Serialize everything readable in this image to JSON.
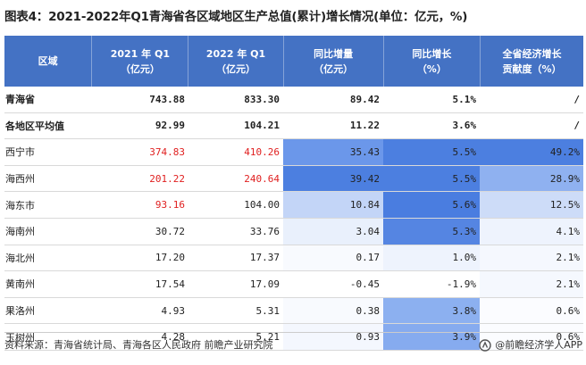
{
  "title": "图表4：2021-2022年Q1青海省各区域地区生产总值(累计)增长情况(单位：亿元，%)",
  "colors": {
    "header_bg": "#4472c4",
    "header_text": "#ffffff",
    "highlight_red": "#e02020",
    "heat_dark": "#4c7fe0",
    "heat_mid": "#7fa6ee",
    "heat_light": "#c7d8f8",
    "heat_faint": "#e8effc"
  },
  "table": {
    "headers": [
      {
        "line1": "区域",
        "line2": ""
      },
      {
        "line1": "2021 年 Q1",
        "line2": "（亿元）"
      },
      {
        "line1": "2022 年 Q1",
        "line2": "（亿元）"
      },
      {
        "line1": "同比增量",
        "line2": "（亿元）"
      },
      {
        "line1": "同比增长",
        "line2": "（%）"
      },
      {
        "line1": "全省经济增长",
        "line2": "贡献度（%）"
      }
    ],
    "rows": [
      {
        "name": "青海省",
        "bold": true,
        "v2021": "743.88",
        "v2022": "833.30",
        "incr": "89.42",
        "growth": "5.1%",
        "contrib": "/",
        "red2021": false,
        "red2022": false,
        "shade": {
          "incr": "",
          "growth": "",
          "contrib": ""
        }
      },
      {
        "name": "各地区平均值",
        "bold": true,
        "v2021": "92.99",
        "v2022": "104.21",
        "incr": "11.22",
        "growth": "3.6%",
        "contrib": "/",
        "red2021": false,
        "red2022": false,
        "shade": {
          "incr": "",
          "growth": "",
          "contrib": ""
        }
      },
      {
        "name": "西宁市",
        "bold": false,
        "v2021": "374.83",
        "v2022": "410.26",
        "incr": "35.43",
        "growth": "5.5%",
        "contrib": "49.2%",
        "red2021": true,
        "red2022": true,
        "shade": {
          "incr": "#6b97ea",
          "growth": "#4c7fe0",
          "contrib": "#4c7fe0"
        }
      },
      {
        "name": "海西州",
        "bold": false,
        "v2021": "201.22",
        "v2022": "240.64",
        "incr": "39.42",
        "growth": "5.5%",
        "contrib": "28.9%",
        "red2021": true,
        "red2022": true,
        "shade": {
          "incr": "#4c7fe0",
          "growth": "#4c7fe0",
          "contrib": "#8fb1f0"
        }
      },
      {
        "name": "海东市",
        "bold": false,
        "v2021": "93.16",
        "v2022": "104.00",
        "incr": "10.84",
        "growth": "5.6%",
        "contrib": "12.5%",
        "red2021": true,
        "red2022": false,
        "shade": {
          "incr": "#c3d5f7",
          "growth": "#4a7de0",
          "contrib": "#cddcf8"
        }
      },
      {
        "name": "海南州",
        "bold": false,
        "v2021": "30.72",
        "v2022": "33.76",
        "incr": "3.04",
        "growth": "5.3%",
        "contrib": "4.1%",
        "red2021": false,
        "red2022": false,
        "shade": {
          "incr": "#e9f0fc",
          "growth": "#5585e2",
          "contrib": "#eef3fd"
        }
      },
      {
        "name": "海北州",
        "bold": false,
        "v2021": "17.20",
        "v2022": "17.37",
        "incr": "0.17",
        "growth": "1.0%",
        "contrib": "2.1%",
        "red2021": false,
        "red2022": false,
        "shade": {
          "incr": "#f8fafe",
          "growth": "#eef3fd",
          "contrib": "#f5f8fe"
        }
      },
      {
        "name": "黄南州",
        "bold": false,
        "v2021": "17.54",
        "v2022": "17.09",
        "incr": "-0.45",
        "growth": "-1.9%",
        "contrib": "2.1%",
        "red2021": false,
        "red2022": false,
        "shade": {
          "incr": "",
          "growth": "",
          "contrib": "#f5f8fe"
        }
      },
      {
        "name": "果洛州",
        "bold": false,
        "v2021": "4.93",
        "v2022": "5.31",
        "incr": "0.38",
        "growth": "3.8%",
        "contrib": "0.6%",
        "red2021": false,
        "red2022": false,
        "shade": {
          "incr": "#f8fafe",
          "growth": "#8cb0f0",
          "contrib": "#fbfcff"
        }
      },
      {
        "name": "玉树州",
        "bold": false,
        "v2021": "4.28",
        "v2022": "5.21",
        "incr": "0.93",
        "growth": "3.9%",
        "contrib": "0.6%",
        "red2021": false,
        "red2022": false,
        "shade": {
          "incr": "#f4f7fe",
          "growth": "#86abef",
          "contrib": "#fbfcff"
        }
      }
    ]
  },
  "footer": {
    "source": "资料来源：青海省统计局、青海各区人民政府 前瞻产业研究院",
    "brand": "@前瞻经济学人APP",
    "brand_icon": "qianzhan-logo-icon"
  }
}
